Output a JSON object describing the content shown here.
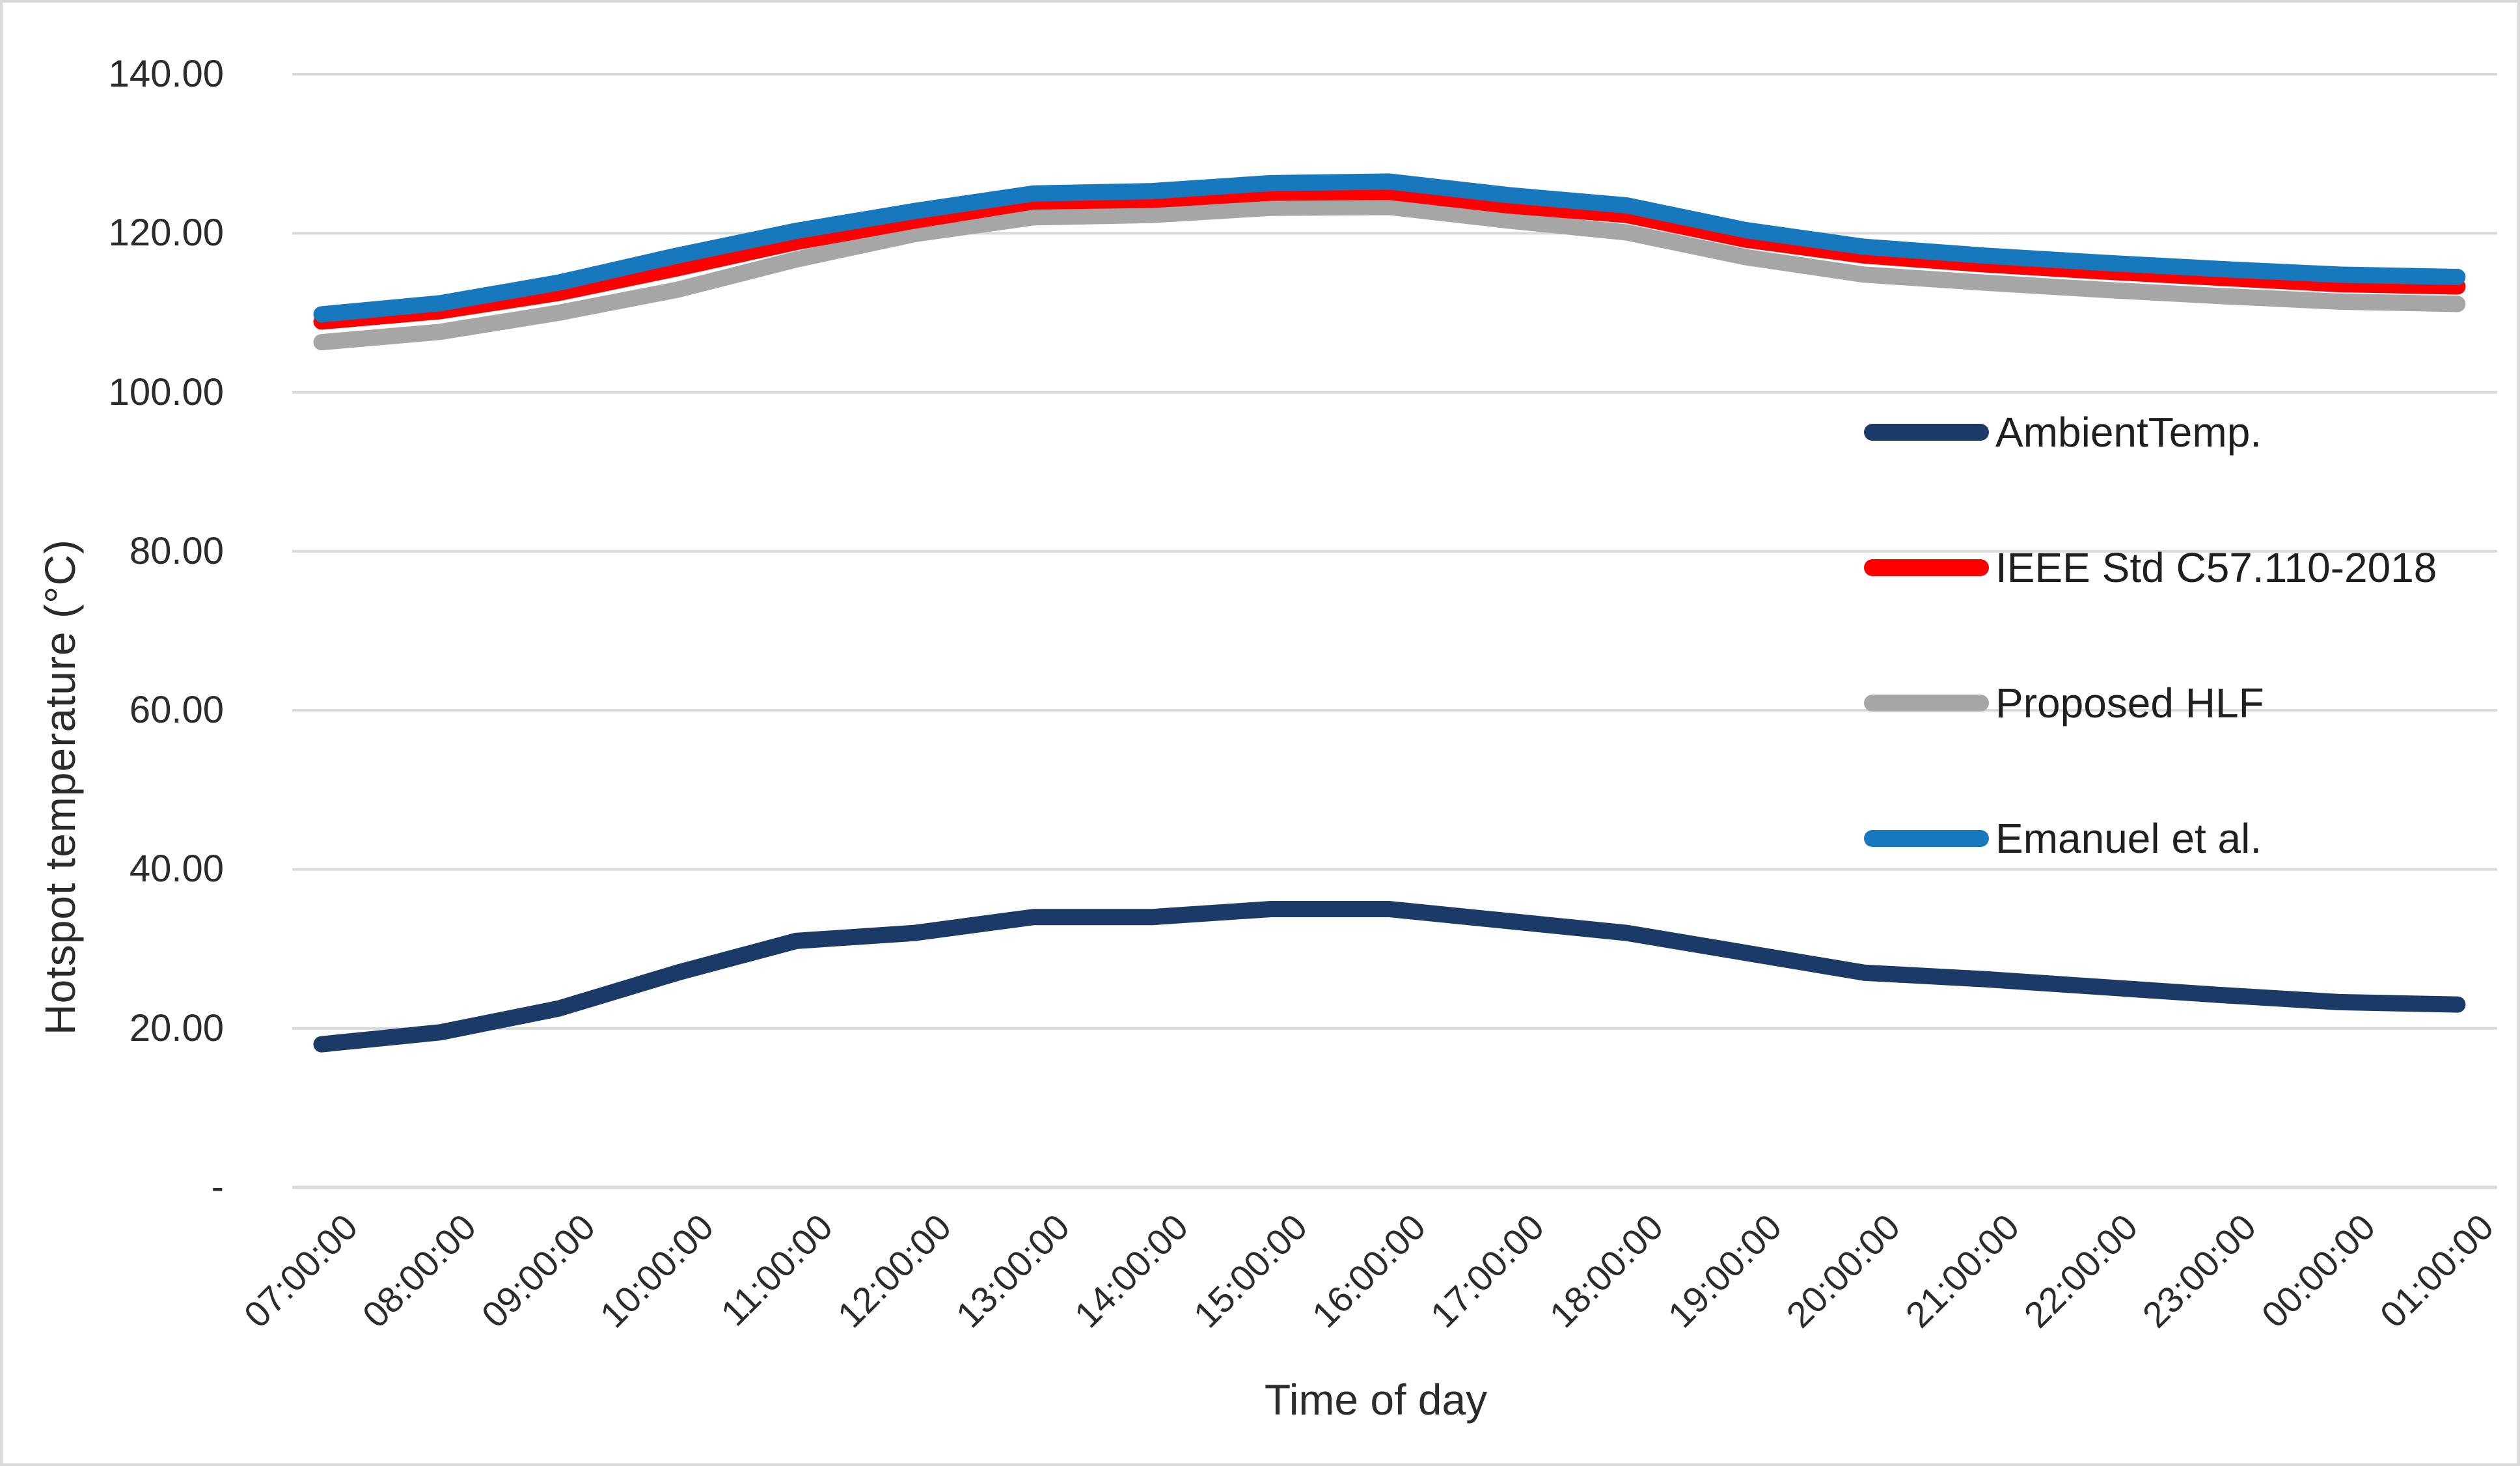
{
  "figure": {
    "background": "#FFFFFF",
    "border_color": "#D9D9D9",
    "gridline_color": "#D9D9D9"
  },
  "chart_data": {
    "type": "line",
    "title": "",
    "xlabel": "Time of day",
    "ylabel": "Hotspot temperature (°C)",
    "ylim": [
      0,
      140
    ],
    "ytick_step": 20,
    "grid": true,
    "legend_position": "right-middle",
    "yticks": [
      {
        "label": "140.00",
        "value": 140
      },
      {
        "label": "120.00",
        "value": 120
      },
      {
        "label": "100.00",
        "value": 100
      },
      {
        "label": "80.00",
        "value": 80
      },
      {
        "label": "60.00",
        "value": 60
      },
      {
        "label": "40.00",
        "value": 40
      },
      {
        "label": "20.00",
        "value": 20
      },
      {
        "label": "-",
        "value": 0
      }
    ],
    "categories": [
      "07:00:00",
      "08:00:00",
      "09:00:00",
      "10:00:00",
      "11:00:00",
      "12:00:00",
      "13:00:00",
      "14:00:00",
      "15:00:00",
      "16:00:00",
      "17:00:00",
      "18:00:00",
      "19:00:00",
      "20:00:00",
      "21:00:00",
      "22:00:00",
      "23:00:00",
      "00:00:00",
      "01:00:00"
    ],
    "series": [
      {
        "name": "AmbientTemp.",
        "color": "#1C3A67",
        "values": [
          18.0,
          19.5,
          22.5,
          27.0,
          31.0,
          32.0,
          34.0,
          34.0,
          35.0,
          35.0,
          33.5,
          32.0,
          29.5,
          27.0,
          26.2,
          25.2,
          24.2,
          23.3,
          23.0
        ]
      },
      {
        "name": "IEEE Std C57.110-2018",
        "color": "#FF0000",
        "values": [
          108.9,
          110.2,
          112.5,
          115.6,
          118.9,
          121.6,
          124.0,
          124.2,
          125.1,
          125.2,
          123.5,
          122.3,
          119.2,
          117.2,
          116.1,
          115.2,
          114.4,
          113.6,
          113.3
        ]
      },
      {
        "name": "Proposed HLF",
        "color": "#A6A6A6",
        "values": [
          106.3,
          107.6,
          110.0,
          112.9,
          116.7,
          119.9,
          122.0,
          122.3,
          123.2,
          123.3,
          121.6,
          120.1,
          117.0,
          114.8,
          113.8,
          112.9,
          112.1,
          111.4,
          111.1
        ]
      },
      {
        "name": "Emanuel et al.",
        "color": "#1878BE",
        "values": [
          109.8,
          111.2,
          113.8,
          117.2,
          120.3,
          122.8,
          125.0,
          125.3,
          126.3,
          126.5,
          124.8,
          123.5,
          120.4,
          118.3,
          117.2,
          116.3,
          115.5,
          114.8,
          114.5
        ]
      }
    ]
  }
}
